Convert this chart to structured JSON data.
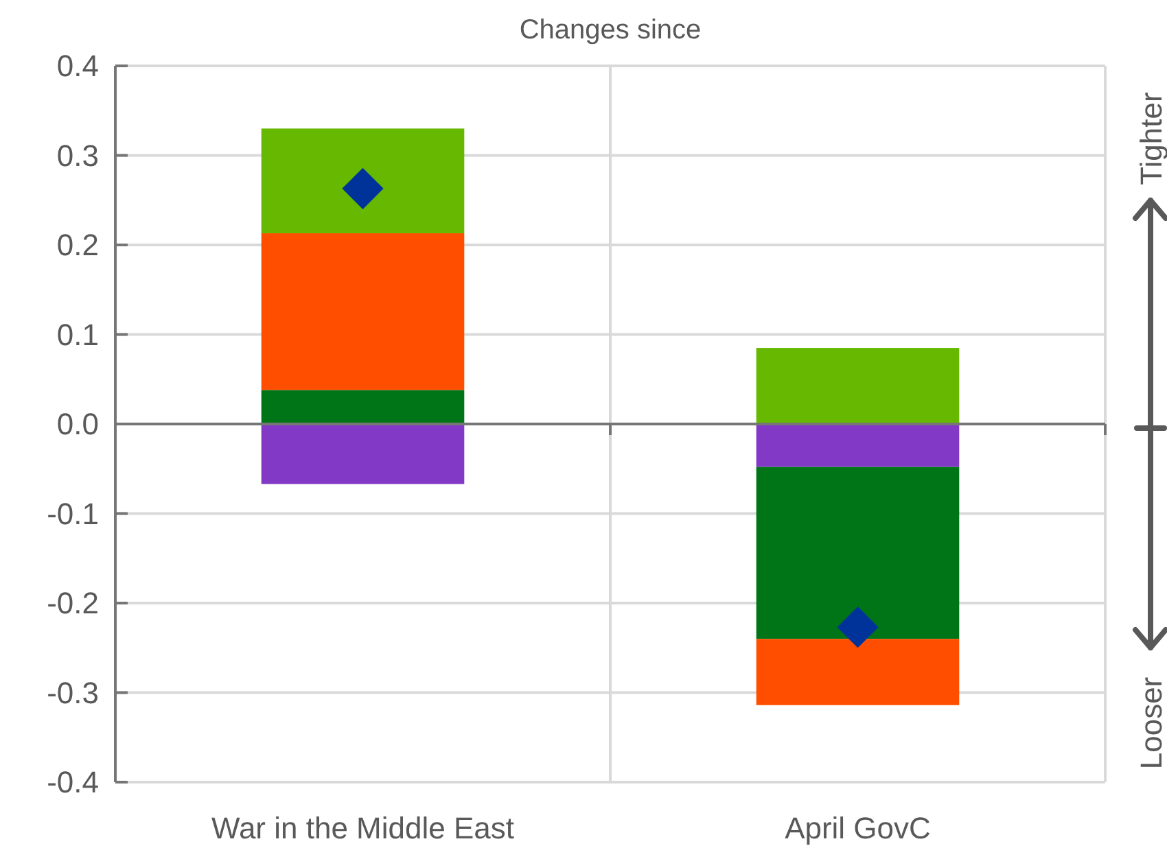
{
  "chart_data": {
    "type": "bar",
    "title": "Changes since",
    "categories": [
      "War in the Middle East",
      "April GovC"
    ],
    "stacked": true,
    "series": [
      {
        "color": "#8139c6",
        "values": [
          -0.067,
          -0.048
        ]
      },
      {
        "color": "#007518",
        "values": [
          0.038,
          -0.192
        ]
      },
      {
        "color": "#ff4e00",
        "values": [
          0.175,
          -0.074
        ]
      },
      {
        "color": "#66b800",
        "values": [
          0.117,
          0.085
        ]
      },
      {
        "type": "scatter",
        "color": "#003399",
        "marker": "diamond",
        "x": [
          "War in the Middle East",
          "April GovC"
        ],
        "values": [
          0.263,
          -0.227
        ]
      }
    ],
    "ylim": [
      -0.4,
      0.4
    ],
    "yticks": [
      -0.4,
      -0.3,
      -0.2,
      -0.1,
      {
        "value": 0,
        "label": "0.0"
      },
      0.1,
      0.2,
      0.3,
      0.4
    ],
    "grid": true,
    "annotations": [
      "Tighter",
      "Looser"
    ]
  }
}
